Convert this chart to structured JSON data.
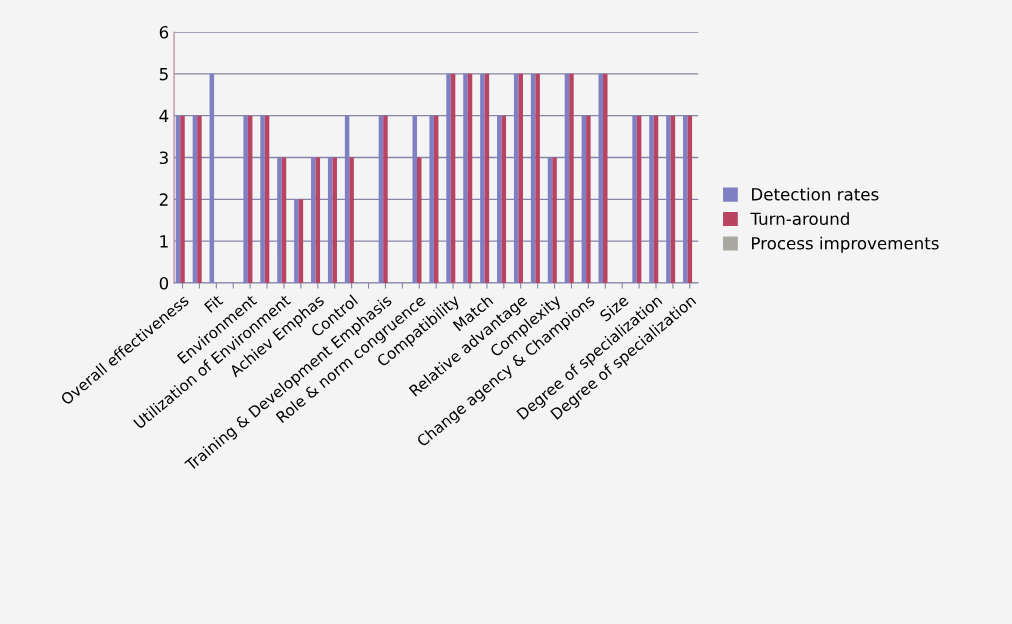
{
  "chart_data": {
    "type": "bar",
    "categories": [
      "Overall effectiveness",
      null,
      "Fit",
      null,
      "Environment",
      null,
      "Utilization of Environment",
      null,
      "Achiev Emphas",
      null,
      "Control",
      null,
      "Training & Development Emphasis",
      null,
      "Role & norm congruence",
      null,
      "Compatibility",
      null,
      "Match",
      null,
      "Relative advantage",
      null,
      "Complexity",
      null,
      "Change agency & Champions",
      null,
      "Size",
      null,
      "Degree of specialization",
      null,
      "Degree of specialization"
    ],
    "series": [
      {
        "name": "Detection rates",
        "color": "#7f7fc4",
        "values": [
          4,
          4,
          5,
          null,
          4,
          4,
          3,
          2,
          3,
          3,
          4,
          null,
          4,
          null,
          4,
          4,
          5,
          5,
          5,
          4,
          5,
          5,
          3,
          5,
          4,
          5,
          null,
          4,
          4,
          4,
          4
        ]
      },
      {
        "name": "Turn-around",
        "color": "#b94462",
        "values": [
          4,
          4,
          null,
          null,
          4,
          4,
          3,
          2,
          3,
          3,
          3,
          null,
          4,
          null,
          3,
          4,
          5,
          5,
          5,
          4,
          5,
          5,
          3,
          5,
          4,
          5,
          null,
          4,
          4,
          4,
          4
        ]
      },
      {
        "name": "Process improvements",
        "color": "#a8a8a0",
        "values": [
          null,
          null,
          null,
          null,
          null,
          null,
          null,
          null,
          null,
          null,
          null,
          null,
          null,
          null,
          null,
          null,
          null,
          null,
          null,
          null,
          null,
          null,
          null,
          null,
          null,
          null,
          null,
          null,
          null,
          null,
          null
        ]
      }
    ],
    "ylim": [
      0,
      6
    ],
    "yticks": [
      0,
      1,
      2,
      3,
      4,
      5,
      6
    ],
    "grid": "y",
    "legend": "right"
  }
}
